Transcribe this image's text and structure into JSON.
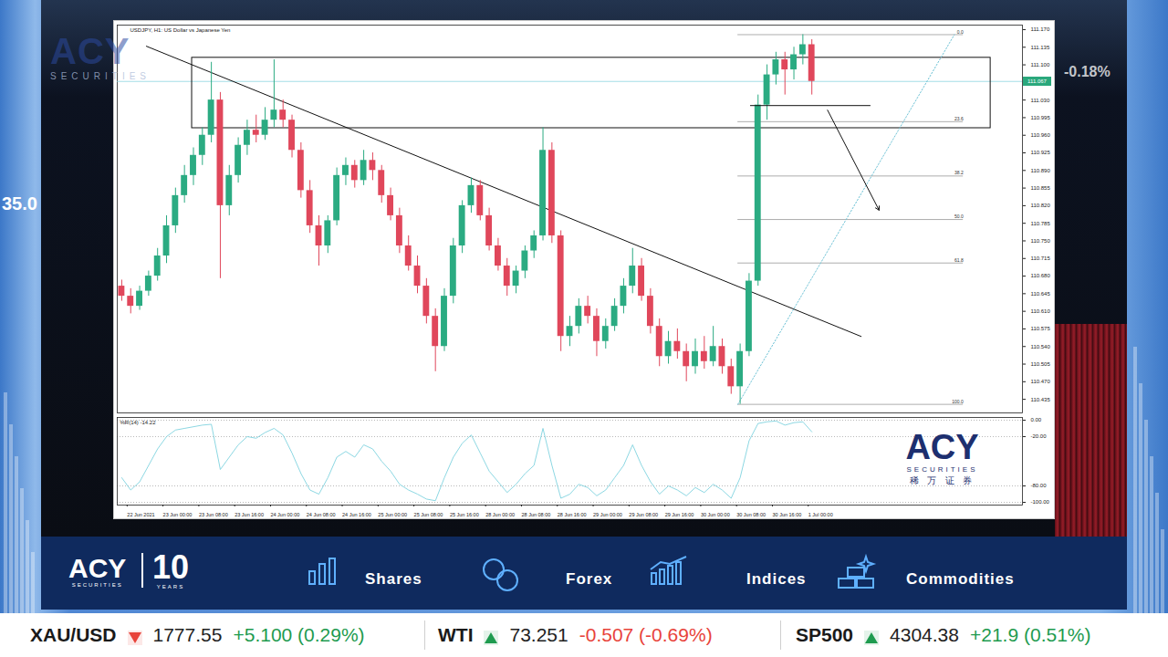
{
  "chart_data": [
    {
      "type": "candlestick",
      "title": "USDJPY, H1: US Dollar vs Japanese Yen",
      "x": [
        1,
        3,
        5,
        7,
        9,
        11,
        13,
        15,
        17,
        19,
        21,
        23,
        25,
        27,
        29,
        31,
        33,
        35,
        37,
        39,
        41,
        43,
        45,
        47,
        49,
        51,
        53,
        55,
        57,
        59,
        61,
        63,
        65,
        67,
        69,
        71,
        73,
        75,
        77,
        79,
        81,
        83,
        85,
        87,
        89,
        91,
        93,
        95,
        97,
        99,
        101,
        103,
        105,
        107,
        109,
        111,
        113,
        115,
        117,
        119,
        121,
        123,
        125,
        127,
        129,
        131,
        133,
        135,
        137,
        139,
        141,
        143,
        145,
        147,
        149,
        151,
        153,
        155
      ],
      "open": [
        110.66,
        110.64,
        110.62,
        110.65,
        110.68,
        110.72,
        110.78,
        110.84,
        110.88,
        110.92,
        110.96,
        111.03,
        110.82,
        110.88,
        110.94,
        110.97,
        110.96,
        110.99,
        111.01,
        110.99,
        110.93,
        110.85,
        110.78,
        110.74,
        110.79,
        110.88,
        110.9,
        110.87,
        110.91,
        110.89,
        110.84,
        110.8,
        110.74,
        110.7,
        110.66,
        110.6,
        110.54,
        110.64,
        110.74,
        110.82,
        110.86,
        110.8,
        110.74,
        110.7,
        110.66,
        110.69,
        110.73,
        110.76,
        110.93,
        110.76,
        110.56,
        110.58,
        110.62,
        110.6,
        110.55,
        110.58,
        110.62,
        110.66,
        110.7,
        110.64,
        110.58,
        110.52,
        110.55,
        110.53,
        110.5,
        110.53,
        110.51,
        110.54,
        110.5,
        110.46,
        110.53,
        110.67,
        111.02,
        111.08,
        111.11,
        111.09,
        111.12,
        111.14
      ],
      "high": [
        110.672,
        110.655,
        110.66,
        110.69,
        110.735,
        110.8,
        110.855,
        110.9,
        110.935,
        110.975,
        111.105,
        111.045,
        110.9,
        110.955,
        110.99,
        111,
        111.015,
        111.11,
        111.03,
        111,
        110.945,
        110.87,
        110.8,
        110.8,
        110.895,
        110.915,
        110.91,
        110.93,
        110.925,
        110.9,
        110.855,
        110.815,
        110.76,
        110.72,
        110.675,
        110.615,
        110.655,
        110.755,
        110.83,
        110.875,
        110.87,
        110.815,
        110.755,
        110.715,
        110.7,
        110.74,
        110.77,
        110.975,
        110.945,
        110.77,
        110.6,
        110.635,
        110.64,
        110.615,
        110.595,
        110.635,
        110.675,
        110.735,
        110.715,
        110.655,
        110.595,
        110.57,
        110.575,
        110.545,
        110.555,
        110.56,
        110.58,
        110.555,
        110.515,
        110.545,
        110.685,
        111.04,
        111.1,
        111.125,
        111.125,
        111.135,
        111.16,
        111.15
      ],
      "low": [
        110.63,
        110.605,
        110.612,
        110.64,
        110.67,
        110.705,
        110.765,
        110.825,
        110.86,
        110.9,
        110.945,
        110.675,
        110.8,
        110.865,
        110.92,
        110.945,
        110.95,
        110.975,
        110.975,
        110.915,
        110.835,
        110.765,
        110.7,
        110.725,
        110.78,
        110.86,
        110.855,
        110.86,
        110.87,
        110.825,
        110.79,
        110.725,
        110.69,
        110.645,
        110.585,
        110.49,
        110.53,
        110.625,
        110.725,
        110.805,
        110.79,
        110.73,
        110.69,
        110.64,
        110.645,
        110.675,
        110.715,
        110.75,
        110.745,
        110.53,
        110.54,
        110.565,
        110.585,
        110.52,
        110.535,
        110.57,
        110.605,
        110.645,
        110.63,
        110.565,
        110.5,
        110.505,
        110.515,
        110.47,
        110.485,
        110.495,
        110.5,
        110.485,
        110.445,
        110.425,
        110.52,
        110.66,
        110.99,
        111.06,
        111.04,
        111.07,
        111.1,
        111.04
      ],
      "close": [
        110.64,
        110.62,
        110.65,
        110.68,
        110.72,
        110.78,
        110.84,
        110.88,
        110.92,
        110.96,
        111.03,
        110.82,
        110.88,
        110.94,
        110.97,
        110.96,
        110.99,
        111.01,
        110.99,
        110.93,
        110.85,
        110.78,
        110.74,
        110.79,
        110.88,
        110.9,
        110.87,
        110.91,
        110.89,
        110.84,
        110.8,
        110.74,
        110.7,
        110.66,
        110.6,
        110.54,
        110.64,
        110.74,
        110.82,
        110.86,
        110.8,
        110.74,
        110.7,
        110.66,
        110.69,
        110.73,
        110.76,
        110.93,
        110.76,
        110.56,
        110.58,
        110.62,
        110.6,
        110.55,
        110.58,
        110.62,
        110.66,
        110.7,
        110.64,
        110.58,
        110.52,
        110.55,
        110.53,
        110.5,
        110.53,
        110.51,
        110.54,
        110.5,
        110.46,
        110.53,
        110.67,
        111.02,
        111.08,
        111.11,
        111.09,
        111.12,
        111.14,
        111.067
      ],
      "colors": [
        "#e0475b",
        "#e0475b",
        "#2bab82",
        "#2bab82",
        "#2bab82",
        "#2bab82",
        "#2bab82",
        "#2bab82",
        "#2bab82",
        "#2bab82",
        "#2bab82",
        "#e0475b",
        "#2bab82",
        "#2bab82",
        "#2bab82",
        "#e0475b",
        "#2bab82",
        "#2bab82",
        "#e0475b",
        "#e0475b",
        "#e0475b",
        "#e0475b",
        "#e0475b",
        "#2bab82",
        "#2bab82",
        "#2bab82",
        "#e0475b",
        "#2bab82",
        "#e0475b",
        "#e0475b",
        "#e0475b",
        "#e0475b",
        "#e0475b",
        "#e0475b",
        "#e0475b",
        "#e0475b",
        "#2bab82",
        "#2bab82",
        "#2bab82",
        "#2bab82",
        "#e0475b",
        "#e0475b",
        "#e0475b",
        "#e0475b",
        "#2bab82",
        "#2bab82",
        "#2bab82",
        "#2bab82",
        "#e0475b",
        "#e0475b",
        "#2bab82",
        "#2bab82",
        "#e0475b",
        "#e0475b",
        "#2bab82",
        "#2bab82",
        "#2bab82",
        "#2bab82",
        "#e0475b",
        "#e0475b",
        "#e0475b",
        "#2bab82",
        "#e0475b",
        "#e0475b",
        "#2bab82",
        "#e0475b",
        "#2bab82",
        "#e0475b",
        "#e0475b",
        "#2bab82",
        "#2bab82",
        "#2bab82",
        "#2bab82",
        "#2bab82",
        "#e0475b",
        "#2bab82",
        "#2bab82",
        "#e0475b"
      ],
      "xlim": [
        0,
        202
      ],
      "ylim": [
        110.408,
        111.179
      ],
      "yticks": [
        {
          "value": 111.17,
          "label": "111.170"
        },
        {
          "value": 111.135,
          "label": "111.135"
        },
        {
          "value": 111.1,
          "label": "111.100"
        },
        {
          "value": 111.03,
          "label": "111.030"
        },
        {
          "value": 110.995,
          "label": "110.995"
        },
        {
          "value": 110.96,
          "label": "110.960"
        },
        {
          "value": 110.925,
          "label": "110.925"
        },
        {
          "value": 110.89,
          "label": "110.890"
        },
        {
          "value": 110.855,
          "label": "110.855"
        },
        {
          "value": 110.82,
          "label": "110.820"
        },
        {
          "value": 110.785,
          "label": "110.785"
        },
        {
          "value": 110.75,
          "label": "110.750"
        },
        {
          "value": 110.715,
          "label": "110.715"
        },
        {
          "value": 110.68,
          "label": "110.680"
        },
        {
          "value": 110.645,
          "label": "110.645"
        },
        {
          "value": 110.61,
          "label": "110.610"
        },
        {
          "value": 110.575,
          "label": "110.575"
        },
        {
          "value": 110.54,
          "label": "110.540"
        },
        {
          "value": 110.505,
          "label": "110.505"
        },
        {
          "value": 110.47,
          "label": "110.470"
        },
        {
          "value": 110.435,
          "label": "110.435"
        }
      ],
      "tick_labels": "y",
      "grid": false,
      "last_price": {
        "value": 111.067,
        "label": "111.067"
      },
      "annotations": {
        "zone": {
          "x1": 16.7,
          "x2": 194.9,
          "y1": 110.974,
          "y2": 111.114
        },
        "trendline": {
          "x": [
            6.5,
            166
          ],
          "y": [
            111.137,
            110.56
          ]
        },
        "support": {
          "x": [
            141.3,
            168
          ],
          "y": [
            111.019,
            111.019
          ]
        },
        "arrow": {
          "x1": 158.5,
          "y1": 111.01,
          "x2": 170,
          "y2": 110.811
        },
        "fibonacci": {
          "x": [
            138.5,
            188.8
          ],
          "levels": [
            {
              "value": 111.16,
              "label": "0.0"
            },
            {
              "value": 110.987,
              "label": "23.6"
            },
            {
              "value": 110.879,
              "label": "38.2"
            },
            {
              "value": 110.7925,
              "label": "50.0"
            },
            {
              "value": 110.706,
              "label": "61.8"
            },
            {
              "value": 110.425,
              "label": "100.0"
            }
          ],
          "trend": {
            "x": [
              138.5,
              186.8
            ],
            "y": [
              110.425,
              111.16
            ]
          }
        }
      }
    },
    {
      "type": "line",
      "title": "%R(14) -14.22",
      "x": [
        1,
        3,
        5,
        7,
        9,
        11,
        13,
        15,
        17,
        19,
        21,
        23,
        25,
        27,
        29,
        31,
        33,
        35,
        37,
        39,
        41,
        43,
        45,
        47,
        49,
        51,
        53,
        55,
        57,
        59,
        61,
        63,
        65,
        67,
        69,
        71,
        73,
        75,
        77,
        79,
        81,
        83,
        85,
        87,
        89,
        91,
        93,
        95,
        97,
        99,
        101,
        103,
        105,
        107,
        109,
        111,
        113,
        115,
        117,
        119,
        121,
        123,
        125,
        127,
        129,
        131,
        133,
        135,
        137,
        139,
        141,
        143,
        145,
        147,
        149,
        151,
        153,
        155
      ],
      "values": [
        -70,
        -85,
        -75,
        -55,
        -35,
        -20,
        -12,
        -10,
        -8,
        -6,
        -5,
        -60,
        -45,
        -30,
        -20,
        -22,
        -15,
        -10,
        -18,
        -40,
        -65,
        -85,
        -90,
        -70,
        -45,
        -38,
        -45,
        -30,
        -35,
        -50,
        -62,
        -78,
        -85,
        -90,
        -96,
        -98,
        -70,
        -45,
        -28,
        -18,
        -40,
        -62,
        -75,
        -88,
        -78,
        -65,
        -55,
        -10,
        -55,
        -95,
        -90,
        -78,
        -82,
        -92,
        -85,
        -70,
        -55,
        -30,
        -55,
        -75,
        -90,
        -80,
        -85,
        -92,
        -82,
        -88,
        -78,
        -85,
        -95,
        -70,
        -25,
        -4,
        -2,
        -1,
        -6,
        -3,
        -2,
        -14.22
      ],
      "color": "#7fd3df",
      "xlim": [
        0,
        202
      ],
      "ylim": [
        -103.3,
        3.3
      ],
      "xticks": [
        {
          "value": 2,
          "label": "22 Jun 2021"
        },
        {
          "value": 10,
          "label": "23 Jun 00:00"
        },
        {
          "value": 18,
          "label": "23 Jun 08:00"
        },
        {
          "value": 26,
          "label": "23 Jun 16:00"
        },
        {
          "value": 34,
          "label": "24 Jun 00:00"
        },
        {
          "value": 42,
          "label": "24 Jun 08:00"
        },
        {
          "value": 50,
          "label": "24 Jun 16:00"
        },
        {
          "value": 58,
          "label": "25 Jun 00:00"
        },
        {
          "value": 66,
          "label": "25 Jun 08:00"
        },
        {
          "value": 74,
          "label": "25 Jun 16:00"
        },
        {
          "value": 82,
          "label": "28 Jun 00:00"
        },
        {
          "value": 90,
          "label": "28 Jun 08:00"
        },
        {
          "value": 98,
          "label": "28 Jun 16:00"
        },
        {
          "value": 106,
          "label": "29 Jun 00:00"
        },
        {
          "value": 114,
          "label": "29 Jun 08:00"
        },
        {
          "value": 122,
          "label": "29 Jun 16:00"
        },
        {
          "value": 130,
          "label": "30 Jun 00:00"
        },
        {
          "value": 138,
          "label": "30 Jun 08:00"
        },
        {
          "value": 146,
          "label": "30 Jun 16:00"
        },
        {
          "value": 154,
          "label": "1 Jul 00:00"
        }
      ],
      "yticks": [
        {
          "value": 0,
          "label": "0.00"
        },
        {
          "value": -20,
          "label": "-20.00"
        },
        {
          "value": -80,
          "label": "-80.00"
        },
        {
          "value": -100,
          "label": "-100.00"
        }
      ],
      "grid": true
    }
  ],
  "screen": {
    "watermark": {
      "brand": "ACY",
      "sub": "SECURITIES"
    },
    "background_numbers": [
      "35.0",
      "-0.18%"
    ],
    "chart_logo": {
      "brand": "ACY",
      "sub": "SECURITIES",
      "chinese": "稀 万 证 券"
    },
    "menu": {
      "brand": "ACY",
      "brand_sub": "SECURITIES",
      "anniversary": "10",
      "anniversary_sub": "YEARS",
      "items": [
        "Shares",
        "Forex",
        "Indices",
        "Commodities"
      ]
    },
    "ticker": [
      {
        "symbol": "XAU/USD",
        "arrow": "down",
        "arrow_color": "#e8433a",
        "price": "1777.55",
        "change": "+5.100 (0.29%)",
        "change_color": "#1e9b4f"
      },
      {
        "symbol": "WTI",
        "arrow": "up",
        "arrow_color": "#1e9b4f",
        "price": "73.251",
        "change": "-0.507 (-0.69%)",
        "change_color": "#e8433a"
      },
      {
        "symbol": "SP500",
        "arrow": "up",
        "arrow_color": "#1e9b4f",
        "price": "4304.38",
        "change": "+21.9 (0.51%)",
        "change_color": "#1e9b4f"
      }
    ]
  }
}
